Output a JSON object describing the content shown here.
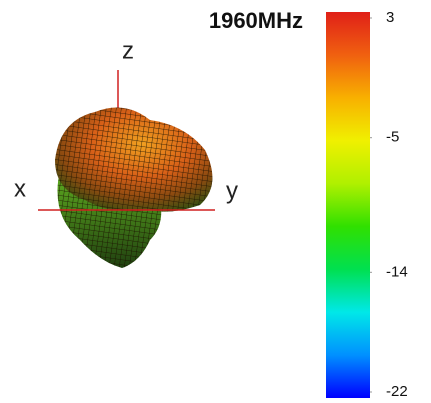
{
  "chart_data": {
    "type": "radiation-pattern",
    "title": "1960MHz",
    "axis_labels": {
      "x": "x",
      "y": "y",
      "z": "z"
    },
    "colorbar": {
      "clim": [
        -22,
        3
      ],
      "ticks": [
        3,
        -5,
        -14,
        -22
      ],
      "colormap": [
        "#0000ff",
        "#0090ff",
        "#00e8e8",
        "#00e050",
        "#30e000",
        "#b0f000",
        "#f0f000",
        "#f8b000",
        "#f06010",
        "#e02018"
      ]
    }
  }
}
